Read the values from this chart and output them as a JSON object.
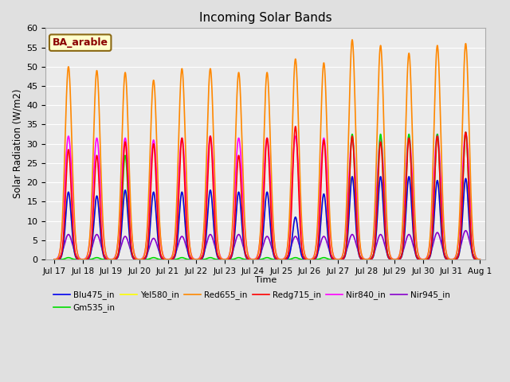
{
  "title": "Incoming Solar Bands",
  "xlabel": "Time",
  "ylabel": "Solar Radiation (W/m2)",
  "annotation": "BA_arable",
  "annotation_bg": "#ffffcc",
  "annotation_border": "#8B6914",
  "annotation_text_color": "#8B0000",
  "ylim": [
    0,
    60
  ],
  "yticks": [
    0,
    5,
    10,
    15,
    20,
    25,
    30,
    35,
    40,
    45,
    50,
    55,
    60
  ],
  "fig_bg": "#e0e0e0",
  "plot_bg": "#ebebeb",
  "grid_color": "#ffffff",
  "series": {
    "Blu475_in": {
      "color": "#0000ee",
      "lw": 1.2
    },
    "Gm535_in": {
      "color": "#00dd00",
      "lw": 1.2
    },
    "Yel580_in": {
      "color": "#ffff00",
      "lw": 1.2
    },
    "Red655_in": {
      "color": "#ff8800",
      "lw": 1.2
    },
    "Redg715_in": {
      "color": "#ff0000",
      "lw": 1.2
    },
    "Nir840_in": {
      "color": "#ff00ff",
      "lw": 1.2
    },
    "Nir945_in": {
      "color": "#8800cc",
      "lw": 1.2
    }
  },
  "xtick_labels": [
    "Jul 17",
    "Jul 18",
    "Jul 19",
    "Jul 20",
    "Jul 21",
    "Jul 22",
    "Jul 23",
    "Jul 24",
    "Jul 25",
    "Jul 26",
    "Jul 27",
    "Jul 28",
    "Jul 29",
    "Jul 30",
    "Jul 31",
    "Aug 1"
  ],
  "num_days": 15,
  "peaks_blu": [
    17.5,
    16.5,
    18.0,
    17.5,
    17.5,
    18.0,
    17.5,
    17.5,
    11.0,
    17.0,
    21.5,
    21.5,
    21.5,
    20.5,
    21.0
  ],
  "peaks_grn": [
    0.5,
    0.5,
    27.0,
    0.5,
    0.5,
    0.5,
    0.5,
    0.5,
    0.5,
    0.5,
    32.5,
    32.5,
    32.5,
    32.5,
    33.0
  ],
  "peaks_yel": [
    17.5,
    16.5,
    17.5,
    17.5,
    17.5,
    18.0,
    17.5,
    17.5,
    11.0,
    17.0,
    21.5,
    21.5,
    21.5,
    20.5,
    21.0
  ],
  "peaks_red": [
    50.0,
    49.0,
    48.5,
    46.5,
    49.5,
    49.5,
    48.5,
    48.5,
    52.0,
    51.0,
    57.0,
    55.5,
    53.5,
    55.5,
    56.0
  ],
  "peaks_redg": [
    28.5,
    27.0,
    30.5,
    30.0,
    31.5,
    32.0,
    27.0,
    31.5,
    34.5,
    31.0,
    32.0,
    30.5,
    31.5,
    32.0,
    33.0
  ],
  "peaks_nir840": [
    32.0,
    31.5,
    31.5,
    31.0,
    31.5,
    32.0,
    31.5,
    31.5,
    32.0,
    31.5,
    31.5,
    31.5,
    32.0,
    32.5,
    33.0
  ],
  "peaks_nir945": [
    6.5,
    6.5,
    6.0,
    5.5,
    6.0,
    6.5,
    6.5,
    6.0,
    6.0,
    6.0,
    6.5,
    6.5,
    6.5,
    7.0,
    7.5
  ],
  "sigma_blu": 0.1,
  "sigma_grn": 0.1,
  "sigma_yel": 0.1,
  "sigma_red": 0.12,
  "sigma_redg": 0.1,
  "sigma_nir840": 0.13,
  "sigma_nir945": 0.14
}
